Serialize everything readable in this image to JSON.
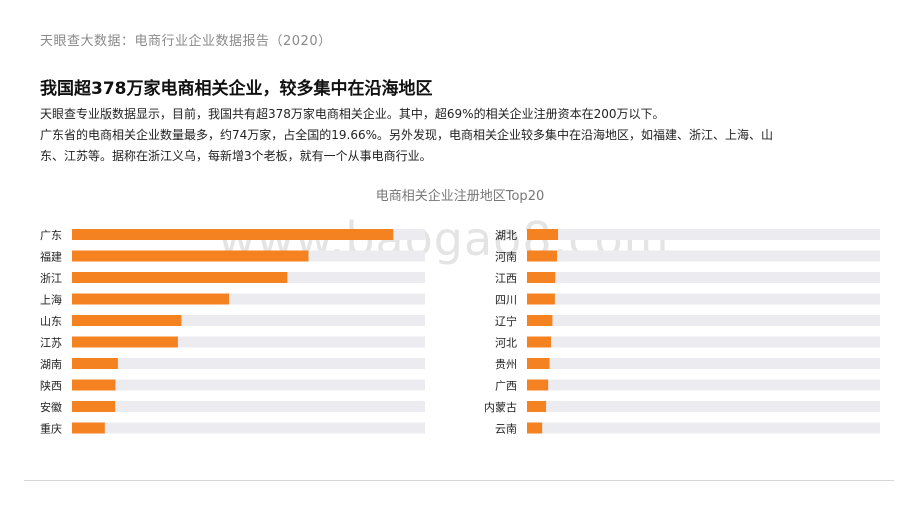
{
  "header": {
    "title": "天眼查大数据：电商行业企业数据报告（2020）"
  },
  "headline": "我国超378万家电商相关企业，较多集中在沿海地区",
  "paragraph": [
    "天眼查专业版数据显示，目前，我国共有超378万家电商相关企业。其中，超69%的相关企业注册资本在200万以下。",
    "广东省的电商相关企业数量最多，约74万家，占全国的19.66%。另外发现，电商相关企业较多集中在沿海地区，如福建、浙江、上海、山",
    "东、江苏等。据称在浙江义乌，每新增3个老板，就有一个从事电商行业。"
  ],
  "watermark": "www.baogao8.com",
  "colors": {
    "bar": "#f58220",
    "track": "#ececf0"
  },
  "chart_data": {
    "type": "bar",
    "orientation": "horizontal",
    "title": "电商相关企业注册地区Top20",
    "xlabel": "",
    "ylabel": "",
    "xlim": [
      0,
      100
    ],
    "grid": false,
    "legend": "none",
    "panels": [
      {
        "categories": [
          "广东",
          "福建",
          "浙江",
          "上海",
          "山东",
          "江苏",
          "湖南",
          "陕西",
          "安徽",
          "重庆"
        ],
        "values": [
          91,
          67,
          61,
          44.5,
          31,
          30,
          13,
          12.3,
          12.2,
          9.3
        ]
      },
      {
        "categories": [
          "湖北",
          "河南",
          "江西",
          "四川",
          "辽宁",
          "河北",
          "贵州",
          "广西",
          "内蒙古",
          "云南"
        ],
        "values": [
          8.8,
          8.5,
          8.0,
          7.9,
          7.2,
          6.8,
          6.4,
          6.0,
          5.4,
          4.3
        ]
      }
    ]
  }
}
